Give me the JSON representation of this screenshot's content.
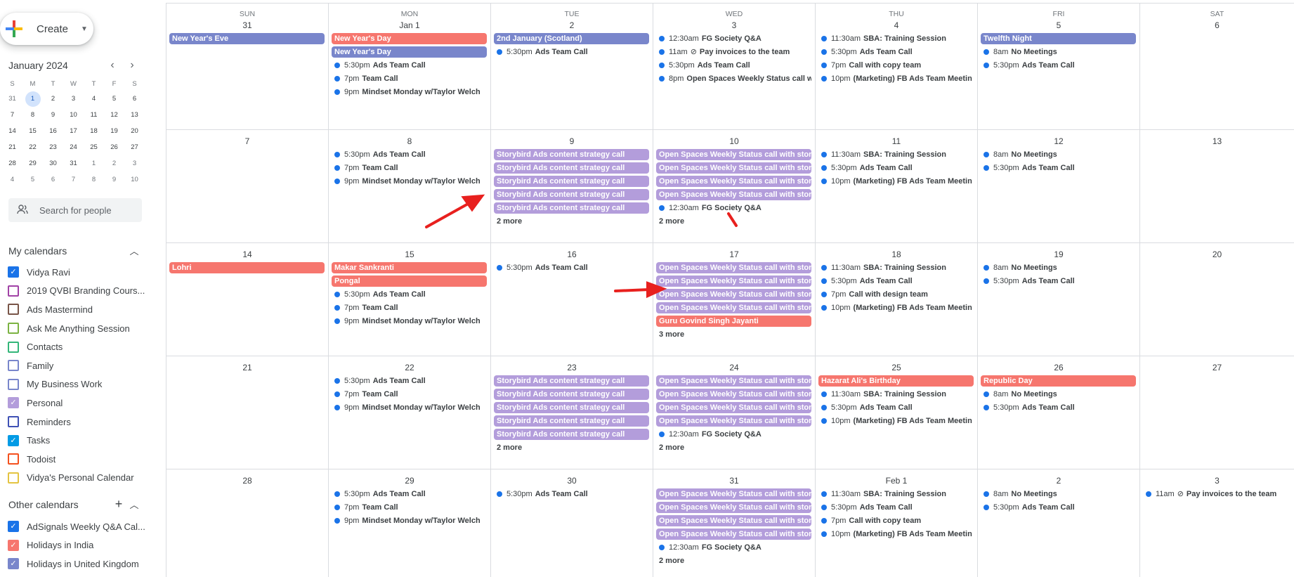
{
  "colors": {
    "lavender": "#7986cb",
    "tomato": "#f28b82",
    "holiday_red": "#f6766e",
    "grape_light": "#b39ddb",
    "dot_blue": "#1a73e8",
    "arrow_red": "#e8201e"
  },
  "sidebar": {
    "create_label": "Create",
    "mini_month": "January 2024",
    "mini_dow": [
      "S",
      "M",
      "T",
      "W",
      "T",
      "F",
      "S"
    ],
    "mini_days": [
      [
        "31",
        "1",
        "2",
        "3",
        "4",
        "5",
        "6"
      ],
      [
        "7",
        "8",
        "9",
        "10",
        "11",
        "12",
        "13"
      ],
      [
        "14",
        "15",
        "16",
        "17",
        "18",
        "19",
        "20"
      ],
      [
        "21",
        "22",
        "23",
        "24",
        "25",
        "26",
        "27"
      ],
      [
        "28",
        "29",
        "30",
        "31",
        "1",
        "2",
        "3"
      ],
      [
        "4",
        "5",
        "6",
        "7",
        "8",
        "9",
        "10"
      ]
    ],
    "search_placeholder": "Search for people",
    "my_calendars_label": "My calendars",
    "my_calendars": [
      {
        "name": "Vidya Ravi",
        "color": "#1a73e8",
        "checked": true
      },
      {
        "name": "2019 QVBI Branding Cours...",
        "color": "#a142a6",
        "checked": false
      },
      {
        "name": "Ads Mastermind",
        "color": "#795548",
        "checked": false
      },
      {
        "name": "Ask Me Anything Session",
        "color": "#7cb342",
        "checked": false
      },
      {
        "name": "Contacts",
        "color": "#33b679",
        "checked": false
      },
      {
        "name": "Family",
        "color": "#7986cb",
        "checked": false
      },
      {
        "name": "My Business Work",
        "color": "#7986cb",
        "checked": false
      },
      {
        "name": "Personal",
        "color": "#b39ddb",
        "checked": true
      },
      {
        "name": "Reminders",
        "color": "#3f51b5",
        "checked": false
      },
      {
        "name": "Tasks",
        "color": "#039be5",
        "checked": true
      },
      {
        "name": "Todoist",
        "color": "#f4511e",
        "checked": false
      },
      {
        "name": "Vidya's Personal Calendar",
        "color": "#e4c441",
        "checked": false
      }
    ],
    "other_calendars_label": "Other calendars",
    "other_calendars": [
      {
        "name": "AdSignals Weekly Q&A Cal...",
        "color": "#1a73e8",
        "checked": true
      },
      {
        "name": "Holidays in India",
        "color": "#f6766e",
        "checked": true
      },
      {
        "name": "Holidays in United Kingdom",
        "color": "#7986cb",
        "checked": true
      }
    ]
  },
  "month": {
    "dow": [
      "SUN",
      "MON",
      "TUE",
      "WED",
      "THU",
      "FRI",
      "SAT"
    ],
    "weeks": [
      [
        {
          "d": "31",
          "ev": [
            {
              "k": "bar",
              "c": "lavender",
              "t": "New Year's Eve"
            }
          ]
        },
        {
          "d": "Jan 1",
          "ev": [
            {
              "k": "bar",
              "c": "holiday_red",
              "t": "New Year's Day"
            },
            {
              "k": "bar",
              "c": "lavender",
              "t": "New Year's Day"
            },
            {
              "k": "dot",
              "tm": "5:30pm",
              "t": "Ads Team Call"
            },
            {
              "k": "dot",
              "tm": "7pm",
              "t": "Team Call"
            },
            {
              "k": "dot",
              "tm": "9pm",
              "t": "Mindset Monday w/Taylor Welch"
            }
          ]
        },
        {
          "d": "2",
          "ev": [
            {
              "k": "bar",
              "c": "lavender",
              "t": "2nd January (Scotland)"
            },
            {
              "k": "dot",
              "tm": "5:30pm",
              "t": "Ads Team Call"
            }
          ]
        },
        {
          "d": "3",
          "ev": [
            {
              "k": "dot",
              "tm": "12:30am",
              "t": "FG Society Q&A"
            },
            {
              "k": "dot",
              "tm": "11am",
              "chk": true,
              "t": "Pay invoices to the team"
            },
            {
              "k": "dot",
              "tm": "5:30pm",
              "t": "Ads Team Call"
            },
            {
              "k": "dot",
              "tm": "8pm",
              "t": "Open Spaces Weekly Status call w"
            }
          ]
        },
        {
          "d": "4",
          "ev": [
            {
              "k": "dot",
              "tm": "11:30am",
              "t": "SBA: Training Session"
            },
            {
              "k": "dot",
              "tm": "5:30pm",
              "t": "Ads Team Call"
            },
            {
              "k": "dot",
              "tm": "7pm",
              "t": "Call with copy team"
            },
            {
              "k": "dot",
              "tm": "10pm",
              "t": "(Marketing) FB Ads Team Meetin"
            }
          ]
        },
        {
          "d": "5",
          "ev": [
            {
              "k": "bar",
              "c": "lavender",
              "t": "Twelfth Night"
            },
            {
              "k": "dot",
              "tm": "8am",
              "t": "No Meetings"
            },
            {
              "k": "dot",
              "tm": "5:30pm",
              "t": "Ads Team Call"
            }
          ]
        },
        {
          "d": "6",
          "ev": []
        }
      ],
      [
        {
          "d": "7",
          "ev": []
        },
        {
          "d": "8",
          "ev": [
            {
              "k": "dot",
              "tm": "5:30pm",
              "t": "Ads Team Call"
            },
            {
              "k": "dot",
              "tm": "7pm",
              "t": "Team Call"
            },
            {
              "k": "dot",
              "tm": "9pm",
              "t": "Mindset Monday w/Taylor Welch"
            }
          ]
        },
        {
          "d": "9",
          "ev": [
            {
              "k": "bar",
              "c": "grape_light",
              "t": "Storybird Ads content strategy call"
            },
            {
              "k": "bar",
              "c": "grape_light",
              "t": "Storybird Ads content strategy call"
            },
            {
              "k": "bar",
              "c": "grape_light",
              "t": "Storybird Ads content strategy call"
            },
            {
              "k": "bar",
              "c": "grape_light",
              "t": "Storybird Ads content strategy call"
            },
            {
              "k": "bar",
              "c": "grape_light",
              "t": "Storybird Ads content strategy call"
            },
            {
              "k": "more",
              "t": "2 more"
            }
          ]
        },
        {
          "d": "10",
          "ev": [
            {
              "k": "bar",
              "c": "grape_light",
              "t": "Open Spaces Weekly Status call with story"
            },
            {
              "k": "bar",
              "c": "grape_light",
              "t": "Open Spaces Weekly Status call with story"
            },
            {
              "k": "bar",
              "c": "grape_light",
              "t": "Open Spaces Weekly Status call with story"
            },
            {
              "k": "bar",
              "c": "grape_light",
              "t": "Open Spaces Weekly Status call with story"
            },
            {
              "k": "dot",
              "tm": "12:30am",
              "t": "FG Society Q&A"
            },
            {
              "k": "more",
              "t": "2 more"
            }
          ]
        },
        {
          "d": "11",
          "ev": [
            {
              "k": "dot",
              "tm": "11:30am",
              "t": "SBA: Training Session"
            },
            {
              "k": "dot",
              "tm": "5:30pm",
              "t": "Ads Team Call"
            },
            {
              "k": "dot",
              "tm": "10pm",
              "t": "(Marketing) FB Ads Team Meetin"
            }
          ]
        },
        {
          "d": "12",
          "ev": [
            {
              "k": "dot",
              "tm": "8am",
              "t": "No Meetings"
            },
            {
              "k": "dot",
              "tm": "5:30pm",
              "t": "Ads Team Call"
            }
          ]
        },
        {
          "d": "13",
          "ev": []
        }
      ],
      [
        {
          "d": "14",
          "ev": [
            {
              "k": "bar",
              "c": "holiday_red",
              "t": "Lohri"
            }
          ]
        },
        {
          "d": "15",
          "ev": [
            {
              "k": "bar",
              "c": "holiday_red",
              "t": "Makar Sankranti"
            },
            {
              "k": "bar",
              "c": "holiday_red",
              "t": "Pongal"
            },
            {
              "k": "dot",
              "tm": "5:30pm",
              "t": "Ads Team Call"
            },
            {
              "k": "dot",
              "tm": "7pm",
              "t": "Team Call"
            },
            {
              "k": "dot",
              "tm": "9pm",
              "t": "Mindset Monday w/Taylor Welch"
            }
          ]
        },
        {
          "d": "16",
          "ev": [
            {
              "k": "dot",
              "tm": "5:30pm",
              "t": "Ads Team Call"
            }
          ]
        },
        {
          "d": "17",
          "ev": [
            {
              "k": "bar",
              "c": "grape_light",
              "t": "Open Spaces Weekly Status call with story"
            },
            {
              "k": "bar",
              "c": "grape_light",
              "t": "Open Spaces Weekly Status call with story"
            },
            {
              "k": "bar",
              "c": "grape_light",
              "t": "Open Spaces Weekly Status call with story"
            },
            {
              "k": "bar",
              "c": "grape_light",
              "t": "Open Spaces Weekly Status call with story"
            },
            {
              "k": "bar",
              "c": "holiday_red",
              "t": "Guru Govind Singh Jayanti"
            },
            {
              "k": "more",
              "t": "3 more"
            }
          ]
        },
        {
          "d": "18",
          "ev": [
            {
              "k": "dot",
              "tm": "11:30am",
              "t": "SBA: Training Session"
            },
            {
              "k": "dot",
              "tm": "5:30pm",
              "t": "Ads Team Call"
            },
            {
              "k": "dot",
              "tm": "7pm",
              "t": "Call with design team"
            },
            {
              "k": "dot",
              "tm": "10pm",
              "t": "(Marketing) FB Ads Team Meetin"
            }
          ]
        },
        {
          "d": "19",
          "ev": [
            {
              "k": "dot",
              "tm": "8am",
              "t": "No Meetings"
            },
            {
              "k": "dot",
              "tm": "5:30pm",
              "t": "Ads Team Call"
            }
          ]
        },
        {
          "d": "20",
          "ev": []
        }
      ],
      [
        {
          "d": "21",
          "ev": []
        },
        {
          "d": "22",
          "ev": [
            {
              "k": "dot",
              "tm": "5:30pm",
              "t": "Ads Team Call"
            },
            {
              "k": "dot",
              "tm": "7pm",
              "t": "Team Call"
            },
            {
              "k": "dot",
              "tm": "9pm",
              "t": "Mindset Monday w/Taylor Welch"
            }
          ]
        },
        {
          "d": "23",
          "ev": [
            {
              "k": "bar",
              "c": "grape_light",
              "t": "Storybird Ads content strategy call"
            },
            {
              "k": "bar",
              "c": "grape_light",
              "t": "Storybird Ads content strategy call"
            },
            {
              "k": "bar",
              "c": "grape_light",
              "t": "Storybird Ads content strategy call"
            },
            {
              "k": "bar",
              "c": "grape_light",
              "t": "Storybird Ads content strategy call"
            },
            {
              "k": "bar",
              "c": "grape_light",
              "t": "Storybird Ads content strategy call"
            },
            {
              "k": "more",
              "t": "2 more"
            }
          ]
        },
        {
          "d": "24",
          "ev": [
            {
              "k": "bar",
              "c": "grape_light",
              "t": "Open Spaces Weekly Status call with story"
            },
            {
              "k": "bar",
              "c": "grape_light",
              "t": "Open Spaces Weekly Status call with story"
            },
            {
              "k": "bar",
              "c": "grape_light",
              "t": "Open Spaces Weekly Status call with story"
            },
            {
              "k": "bar",
              "c": "grape_light",
              "t": "Open Spaces Weekly Status call with story"
            },
            {
              "k": "dot",
              "tm": "12:30am",
              "t": "FG Society Q&A"
            },
            {
              "k": "more",
              "t": "2 more"
            }
          ]
        },
        {
          "d": "25",
          "ev": [
            {
              "k": "bar",
              "c": "holiday_red",
              "t": "Hazarat Ali's Birthday"
            },
            {
              "k": "dot",
              "tm": "11:30am",
              "t": "SBA: Training Session"
            },
            {
              "k": "dot",
              "tm": "5:30pm",
              "t": "Ads Team Call"
            },
            {
              "k": "dot",
              "tm": "10pm",
              "t": "(Marketing) FB Ads Team Meetin"
            }
          ]
        },
        {
          "d": "26",
          "ev": [
            {
              "k": "bar",
              "c": "holiday_red",
              "t": "Republic Day"
            },
            {
              "k": "dot",
              "tm": "8am",
              "t": "No Meetings"
            },
            {
              "k": "dot",
              "tm": "5:30pm",
              "t": "Ads Team Call"
            }
          ]
        },
        {
          "d": "27",
          "ev": []
        }
      ],
      [
        {
          "d": "28",
          "ev": []
        },
        {
          "d": "29",
          "ev": [
            {
              "k": "dot",
              "tm": "5:30pm",
              "t": "Ads Team Call"
            },
            {
              "k": "dot",
              "tm": "7pm",
              "t": "Team Call"
            },
            {
              "k": "dot",
              "tm": "9pm",
              "t": "Mindset Monday w/Taylor Welch"
            }
          ]
        },
        {
          "d": "30",
          "ev": [
            {
              "k": "dot",
              "tm": "5:30pm",
              "t": "Ads Team Call"
            }
          ]
        },
        {
          "d": "31",
          "ev": [
            {
              "k": "bar",
              "c": "grape_light",
              "t": "Open Spaces Weekly Status call with story"
            },
            {
              "k": "bar",
              "c": "grape_light",
              "t": "Open Spaces Weekly Status call with story"
            },
            {
              "k": "bar",
              "c": "grape_light",
              "t": "Open Spaces Weekly Status call with story"
            },
            {
              "k": "bar",
              "c": "grape_light",
              "t": "Open Spaces Weekly Status call with story"
            },
            {
              "k": "dot",
              "tm": "12:30am",
              "t": "FG Society Q&A"
            },
            {
              "k": "more",
              "t": "2 more"
            }
          ]
        },
        {
          "d": "Feb 1",
          "ev": [
            {
              "k": "dot",
              "tm": "11:30am",
              "t": "SBA: Training Session"
            },
            {
              "k": "dot",
              "tm": "5:30pm",
              "t": "Ads Team Call"
            },
            {
              "k": "dot",
              "tm": "7pm",
              "t": "Call with copy team"
            },
            {
              "k": "dot",
              "tm": "10pm",
              "t": "(Marketing) FB Ads Team Meetin"
            }
          ]
        },
        {
          "d": "2",
          "ev": [
            {
              "k": "dot",
              "tm": "8am",
              "t": "No Meetings"
            },
            {
              "k": "dot",
              "tm": "5:30pm",
              "t": "Ads Team Call"
            }
          ]
        },
        {
          "d": "3",
          "ev": [
            {
              "k": "dot",
              "tm": "11am",
              "chk": true,
              "t": "Pay invoices to the team"
            }
          ]
        }
      ]
    ]
  }
}
